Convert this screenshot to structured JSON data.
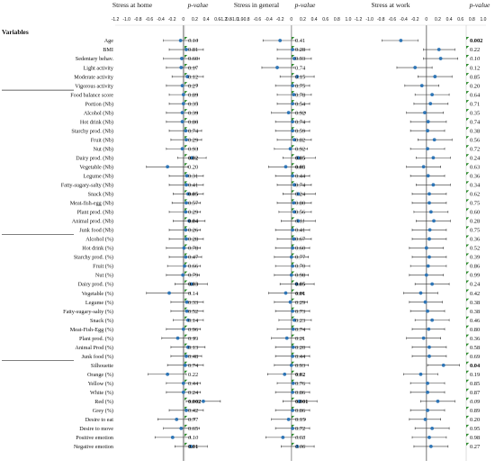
{
  "header": {
    "variables_label": "Variables",
    "panel_titles": [
      "Stress at home",
      "Stress in general",
      "Stress at work"
    ],
    "pvalue_label": "p-value"
  },
  "axis": {
    "ticks": [
      "-1.2",
      "-1.0",
      "-0.8",
      "-0.6",
      "-0.4",
      "-0.2",
      "0",
      "0.2",
      "0.4",
      "0.6",
      "0.8",
      "1.0"
    ],
    "xlim": [
      -1.2,
      1.0
    ]
  },
  "colors": {
    "point": "#2e75b6",
    "error_bar": "#333333",
    "axis": "#666666",
    "flag": "#2e8b2e",
    "divider": "#333333"
  },
  "chart_data": {
    "type": "scatter",
    "variables": [
      "Age",
      "BMI",
      "Sedentary behav.",
      "Light activity",
      "Moderate activity",
      "Vigorous activity",
      "Food balance score",
      "Portion (Nb)",
      "Alcohol (Nb)",
      "Hot drink (Nb)",
      "Starchy prod. (Nb)",
      "Fruit (Nb)",
      "Nut (Nb)",
      "Dairy prod. (Nb)",
      "Vegetable (Nb)",
      "Legume (Nb)",
      "Fatty-sugary-salty (Nb)",
      "Snack (Nb)",
      "Meat-fish-egg (Nb)",
      "Plant prod. (Nb)",
      "Animal prod. (Nb)",
      "Junk food (Nb)",
      "Alcohol (%)",
      "Hot drink (%)",
      "Starchy prod. (%)",
      "Fruit (%)",
      "Nut (%)",
      "Dairy prod. (%)",
      "Vegetable (%)",
      "Legume (%)",
      "Fatty-sugary-salty (%)",
      "Snack (%)",
      "Meat-Fish-Egg (%)",
      "Plant prod. (%)",
      "Animal Prod (%)",
      "Junk food (%)",
      "Silhouette",
      "Orange (%)",
      "Yellow (%)",
      "White (%)",
      "Red (%)",
      "Grey (%)",
      "Desire to eat",
      "Desire to move",
      "Positive emotion",
      "Negative emotion"
    ],
    "panels": [
      {
        "name": "Stress at home",
        "estimate": [
          -0.05,
          0.05,
          -0.03,
          -0.04,
          0.07,
          -0.02,
          0.0,
          0.0,
          -0.02,
          -0.02,
          0.04,
          0.05,
          -0.02,
          0.15,
          -0.28,
          0.06,
          0.05,
          0.08,
          0.05,
          0.04,
          0.1,
          0.04,
          0.05,
          0.01,
          0.04,
          0.02,
          -0.01,
          0.14,
          -0.25,
          0.06,
          0.06,
          0.08,
          0.0,
          -0.1,
          0.08,
          0.05,
          0.03,
          -0.28,
          0.0,
          0.0,
          0.35,
          0.05,
          -0.12,
          -0.04,
          -0.19,
          0.13
        ],
        "lower": [
          -0.35,
          -0.25,
          -0.35,
          -0.3,
          -0.2,
          -0.3,
          -0.25,
          -0.25,
          -0.3,
          -0.3,
          -0.25,
          -0.22,
          -0.3,
          -0.1,
          -0.65,
          -0.25,
          -0.25,
          -0.18,
          -0.2,
          -0.25,
          -0.18,
          -0.25,
          -0.25,
          -0.3,
          -0.25,
          -0.28,
          -0.3,
          -0.15,
          -0.65,
          -0.22,
          -0.22,
          -0.18,
          -0.3,
          -0.38,
          -0.22,
          -0.22,
          -0.28,
          -0.62,
          -0.3,
          -0.3,
          0.05,
          -0.25,
          -0.45,
          -0.35,
          -0.5,
          -0.15
        ],
        "upper": [
          0.25,
          0.35,
          0.28,
          0.22,
          0.35,
          0.25,
          0.25,
          0.25,
          0.25,
          0.25,
          0.32,
          0.32,
          0.25,
          0.4,
          0.08,
          0.35,
          0.35,
          0.35,
          0.3,
          0.3,
          0.38,
          0.3,
          0.35,
          0.3,
          0.32,
          0.3,
          0.28,
          0.42,
          0.12,
          0.35,
          0.35,
          0.35,
          0.3,
          0.2,
          0.38,
          0.32,
          0.35,
          0.05,
          0.3,
          0.3,
          0.65,
          0.35,
          0.2,
          0.28,
          0.12,
          0.42
        ],
        "p": [
          "0.10",
          "0.81",
          "0.60",
          "0.17",
          "0.12",
          "0.27",
          "0.89",
          "0.35",
          "0.39",
          "0.86",
          "0.74",
          "0.29",
          "0.93",
          "0.02",
          "0.20",
          "0.31",
          "0.41",
          "0.05",
          "0.57",
          "0.29",
          "0.04",
          "0.26",
          "0.28",
          "0.78",
          "0.47",
          "0.66",
          "0.79",
          "0.03",
          "0.14",
          "0.33",
          "0.52",
          "0.14",
          "0.96",
          "0.19",
          "0.13",
          "0.48",
          "0.74",
          "0.22",
          "0.44",
          "0.24",
          "0.002",
          "0.42",
          "0.77",
          "0.65",
          "0.10",
          "0.01"
        ],
        "p_bold": [
          13,
          17,
          20,
          27,
          40,
          45
        ],
        "p_italic": [
          0,
          44
        ]
      },
      {
        "name": "Stress in general",
        "estimate": [
          -0.2,
          0.02,
          0.05,
          -0.25,
          0.1,
          0.02,
          0.04,
          0.02,
          -0.05,
          0.02,
          0.02,
          0.05,
          -0.02,
          0.12,
          -0.1,
          0.02,
          0.05,
          0.12,
          0.04,
          0.05,
          0.12,
          0.02,
          0.04,
          0.02,
          0.0,
          0.02,
          0.0,
          0.09,
          -0.1,
          -0.02,
          0.02,
          0.05,
          0.03,
          -0.08,
          0.03,
          0.02,
          0.0,
          -0.12,
          0.03,
          0.02,
          0.14,
          0.02,
          -0.05,
          0.02,
          -0.15,
          0.1
        ],
        "lower": [
          -0.5,
          -0.25,
          -0.25,
          -0.52,
          -0.2,
          -0.28,
          -0.25,
          -0.25,
          -0.35,
          -0.28,
          -0.28,
          -0.25,
          -0.3,
          -0.15,
          -0.4,
          -0.28,
          -0.25,
          -0.15,
          -0.25,
          -0.22,
          -0.18,
          -0.28,
          -0.25,
          -0.28,
          -0.3,
          -0.28,
          -0.3,
          -0.2,
          -0.4,
          -0.3,
          -0.28,
          -0.22,
          -0.25,
          -0.35,
          -0.28,
          -0.28,
          -0.3,
          -0.42,
          -0.25,
          -0.28,
          -0.15,
          -0.28,
          -0.35,
          -0.28,
          -0.45,
          -0.18
        ],
        "upper": [
          0.08,
          0.32,
          0.35,
          0.05,
          0.4,
          0.32,
          0.35,
          0.32,
          0.25,
          0.32,
          0.32,
          0.35,
          0.28,
          0.42,
          0.2,
          0.32,
          0.35,
          0.42,
          0.35,
          0.35,
          0.42,
          0.32,
          0.35,
          0.32,
          0.3,
          0.32,
          0.3,
          0.4,
          0.2,
          0.28,
          0.32,
          0.35,
          0.32,
          0.2,
          0.32,
          0.32,
          0.3,
          0.18,
          0.32,
          0.32,
          0.45,
          0.32,
          0.25,
          0.32,
          0.15,
          0.4
        ],
        "p": [
          "0.41",
          "0.28",
          "0.93",
          "0.74",
          "0.15",
          "0.75",
          "0.78",
          "0.54",
          "0.92",
          "0.74",
          "0.59",
          "0.82",
          "0.92",
          "0.05",
          "0.03",
          "0.44",
          "0.74",
          "0.24",
          "0.80",
          "0.56",
          "0.11",
          "0.41",
          "0.67",
          "0.60",
          "0.77",
          "0.70",
          "0.98",
          "0.05",
          "0.01",
          "0.29",
          "0.73",
          "0.23",
          "0.74",
          "0.21",
          "0.20",
          "0.44",
          "0.93",
          "0.02",
          "0.76",
          "0.86",
          "0.001",
          "0.86",
          "0.15",
          "0.72",
          "0.08",
          "0.06"
        ],
        "p_bold": [
          13,
          14,
          27,
          28,
          37,
          40
        ],
        "p_italic": [
          20,
          44,
          45
        ]
      },
      {
        "name": "Stress at work",
        "estimate": [
          -0.45,
          0.22,
          0.25,
          -0.2,
          0.15,
          -0.08,
          0.1,
          0.07,
          -0.03,
          0.03,
          0.02,
          0.14,
          0.02,
          0.12,
          -0.05,
          0.03,
          0.12,
          0.05,
          0.05,
          0.08,
          0.13,
          0.06,
          0.05,
          0.0,
          0.05,
          0.03,
          0.0,
          0.1,
          -0.1,
          -0.02,
          0.02,
          0.1,
          0.04,
          -0.05,
          0.05,
          0.05,
          0.3,
          -0.1,
          0.02,
          0.02,
          0.2,
          0.02,
          -0.02,
          0.1,
          0.05,
          0.08
        ],
        "lower": [
          -0.78,
          -0.05,
          -0.05,
          -0.52,
          -0.15,
          -0.38,
          -0.2,
          -0.22,
          -0.35,
          -0.28,
          -0.28,
          -0.15,
          -0.28,
          -0.18,
          -0.35,
          -0.28,
          -0.18,
          -0.25,
          -0.25,
          -0.22,
          -0.18,
          -0.25,
          -0.25,
          -0.3,
          -0.25,
          -0.28,
          -0.3,
          -0.2,
          -0.4,
          -0.3,
          -0.28,
          -0.2,
          -0.25,
          -0.35,
          -0.25,
          -0.25,
          0.02,
          -0.4,
          -0.28,
          -0.28,
          -0.1,
          -0.28,
          -0.3,
          -0.2,
          -0.25,
          -0.22
        ],
        "upper": [
          -0.15,
          0.5,
          0.55,
          0.1,
          0.45,
          0.22,
          0.4,
          0.38,
          0.3,
          0.35,
          0.32,
          0.45,
          0.32,
          0.42,
          0.25,
          0.32,
          0.42,
          0.35,
          0.35,
          0.38,
          0.42,
          0.35,
          0.35,
          0.3,
          0.35,
          0.35,
          0.3,
          0.4,
          0.2,
          0.28,
          0.32,
          0.4,
          0.32,
          0.25,
          0.35,
          0.35,
          0.58,
          0.2,
          0.32,
          0.32,
          0.5,
          0.32,
          0.25,
          0.4,
          0.35,
          0.38
        ],
        "p": [
          "0.002",
          "0.22",
          "0.10",
          "0.12",
          "0.85",
          "0.20",
          "0.64",
          "0.71",
          "0.35",
          "0.74",
          "0.38",
          "0.56",
          "0.72",
          "0.24",
          "0.63",
          "0.36",
          "0.34",
          "0.62",
          "0.75",
          "0.60",
          "0.28",
          "0.75",
          "0.36",
          "0.52",
          "0.39",
          "0.86",
          "0.99",
          "0.24",
          "0.42",
          "0.38",
          "0.38",
          "0.46",
          "0.80",
          "0.36",
          "0.58",
          "0.69",
          "0.04",
          "0.19",
          "0.85",
          "0.87",
          "0.09",
          "0.89",
          "0.20",
          "0.95",
          "0.98",
          "0.27"
        ],
        "p_bold": [
          0,
          36
        ],
        "p_italic": [
          2,
          40
        ]
      }
    ],
    "xlim": [
      -1.2,
      1.0
    ],
    "zero_line": true
  }
}
